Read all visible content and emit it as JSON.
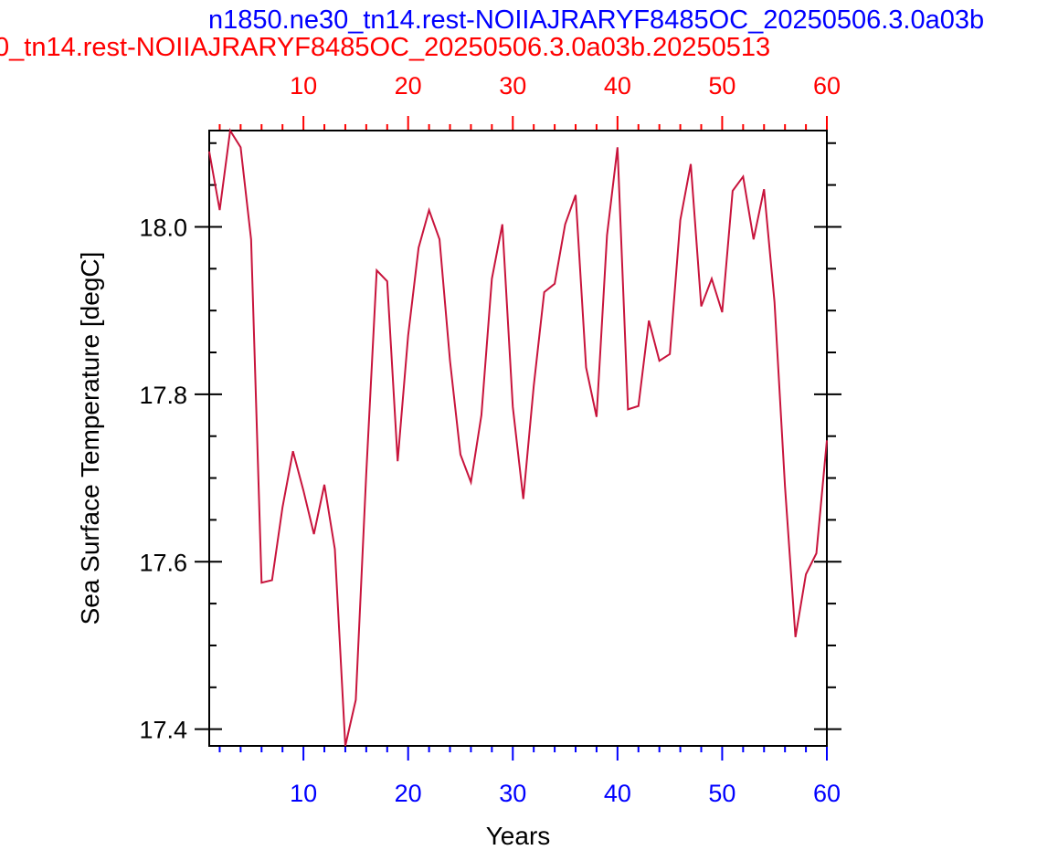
{
  "chart_data": {
    "type": "line",
    "title_top": "n1850.ne30_tn14.rest-NOIIAJRARYF8485OC_20250506.3.0a03b",
    "title_bottom": "0_tn14.rest-NOIIAJRARYF8485OC_20250506.3.0a03b.20250513",
    "xlabel": "Years",
    "ylabel": "Sea Surface Temperature [degC]",
    "xlim": [
      1,
      60
    ],
    "ylim": [
      17.38,
      18.115
    ],
    "x_major_ticks": [
      10,
      20,
      30,
      40,
      50,
      60
    ],
    "y_major_ticks": [
      17.4,
      17.6,
      17.8,
      18.0
    ],
    "x_tick_labels": [
      "10",
      "20",
      "30",
      "40",
      "50",
      "60"
    ],
    "y_tick_labels": [
      "17.4",
      "17.6",
      "17.8",
      "18.0"
    ],
    "grid": false,
    "colors": {
      "line": "#c8143c",
      "top_axis": "#ff0000",
      "bottom_axis": "#0000ff",
      "title_top": "#0000ff",
      "title_bottom": "#ff0000",
      "frame": "#000000"
    },
    "series": [
      {
        "x": [
          1,
          2,
          3,
          4,
          5,
          6,
          7,
          8,
          9,
          10,
          11,
          12,
          13,
          14,
          15,
          16,
          17,
          18,
          19,
          20,
          21,
          22,
          23,
          24,
          25,
          26,
          27,
          28,
          29,
          30,
          31,
          32,
          33,
          34,
          35,
          36,
          37,
          38,
          39,
          40,
          41,
          42,
          43,
          44,
          45,
          46,
          47,
          48,
          49,
          50,
          51,
          52,
          53,
          54,
          55,
          56,
          57,
          58,
          59,
          60
        ],
        "values": [
          18.09,
          18.02,
          18.115,
          18.095,
          17.985,
          17.575,
          17.578,
          17.665,
          17.732,
          17.685,
          17.633,
          17.692,
          17.615,
          17.38,
          17.435,
          17.705,
          17.948,
          17.935,
          17.72,
          17.87,
          17.975,
          18.02,
          17.985,
          17.84,
          17.728,
          17.695,
          17.775,
          17.938,
          18.003,
          17.785,
          17.675,
          17.81,
          17.922,
          17.932,
          18.003,
          18.038,
          17.832,
          17.773,
          17.99,
          18.095,
          17.782,
          17.786,
          17.888,
          17.84,
          17.848,
          18.008,
          18.075,
          17.905,
          17.938,
          17.898,
          18.043,
          18.06,
          17.985,
          18.045,
          17.91,
          17.69,
          17.51,
          17.585,
          17.61,
          17.745
        ]
      }
    ]
  }
}
